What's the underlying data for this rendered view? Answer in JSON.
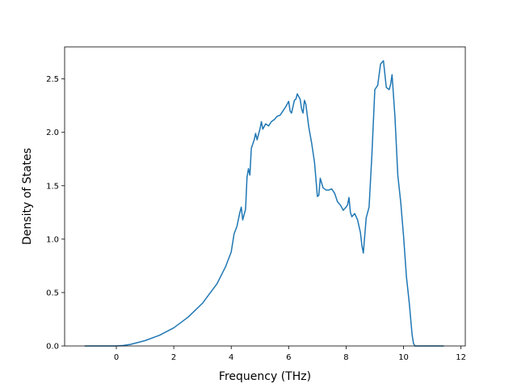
{
  "chart_data": {
    "type": "line",
    "xlabel": "Frequency (THz)",
    "ylabel": "Density of States",
    "xlim": [
      -1.8,
      12.15
    ],
    "ylim": [
      0.0,
      2.8
    ],
    "xticks": [
      0,
      2,
      4,
      6,
      8,
      10,
      12
    ],
    "yticks": [
      0.0,
      0.5,
      1.0,
      1.5,
      2.0,
      2.5
    ],
    "xtick_labels": [
      "0",
      "2",
      "4",
      "6",
      "8",
      "10",
      "12"
    ],
    "ytick_labels": [
      "0.0",
      "0.5",
      "1.0",
      "1.5",
      "2.0",
      "2.5"
    ],
    "grid": false,
    "line_color": "#1f77b4",
    "series": [
      {
        "x": [
          -1.1,
          -0.5,
          0.0,
          0.25,
          0.5,
          1.0,
          1.5,
          2.0,
          2.5,
          3.0,
          3.5,
          3.8,
          4.0,
          4.1,
          4.2,
          4.3,
          4.35,
          4.4,
          4.5,
          4.55,
          4.6,
          4.65,
          4.7,
          4.8,
          4.85,
          4.9,
          5.0,
          5.05,
          5.1,
          5.2,
          5.3,
          5.4,
          5.5,
          5.6,
          5.7,
          5.8,
          5.9,
          6.0,
          6.05,
          6.1,
          6.2,
          6.25,
          6.3,
          6.4,
          6.45,
          6.5,
          6.55,
          6.6,
          6.7,
          6.8,
          6.9,
          7.0,
          7.05,
          7.1,
          7.2,
          7.3,
          7.4,
          7.5,
          7.6,
          7.7,
          7.8,
          7.9,
          8.0,
          8.05,
          8.1,
          8.15,
          8.2,
          8.3,
          8.4,
          8.5,
          8.55,
          8.6,
          8.7,
          8.8,
          8.9,
          9.0,
          9.1,
          9.2,
          9.3,
          9.4,
          9.5,
          9.55,
          9.6,
          9.7,
          9.8,
          9.9,
          10.0,
          10.1,
          10.2,
          10.3,
          10.35,
          10.4,
          10.5,
          11.0,
          11.4
        ],
        "y": [
          0.0,
          0.0,
          0.0,
          0.005,
          0.015,
          0.05,
          0.1,
          0.17,
          0.27,
          0.4,
          0.58,
          0.74,
          0.88,
          1.05,
          1.12,
          1.25,
          1.3,
          1.18,
          1.28,
          1.58,
          1.66,
          1.6,
          1.85,
          1.93,
          1.99,
          1.93,
          2.03,
          2.1,
          2.03,
          2.08,
          2.06,
          2.1,
          2.12,
          2.15,
          2.16,
          2.2,
          2.24,
          2.29,
          2.2,
          2.18,
          2.3,
          2.31,
          2.36,
          2.31,
          2.22,
          2.18,
          2.3,
          2.26,
          2.05,
          1.9,
          1.72,
          1.4,
          1.41,
          1.57,
          1.48,
          1.46,
          1.46,
          1.47,
          1.43,
          1.35,
          1.32,
          1.27,
          1.3,
          1.32,
          1.39,
          1.25,
          1.21,
          1.24,
          1.18,
          1.06,
          0.94,
          0.87,
          1.2,
          1.3,
          1.8,
          2.4,
          2.44,
          2.64,
          2.67,
          2.42,
          2.4,
          2.45,
          2.54,
          2.15,
          1.6,
          1.35,
          1.03,
          0.65,
          0.4,
          0.1,
          0.02,
          0.0,
          0.0,
          0.0,
          0.0
        ]
      }
    ]
  }
}
